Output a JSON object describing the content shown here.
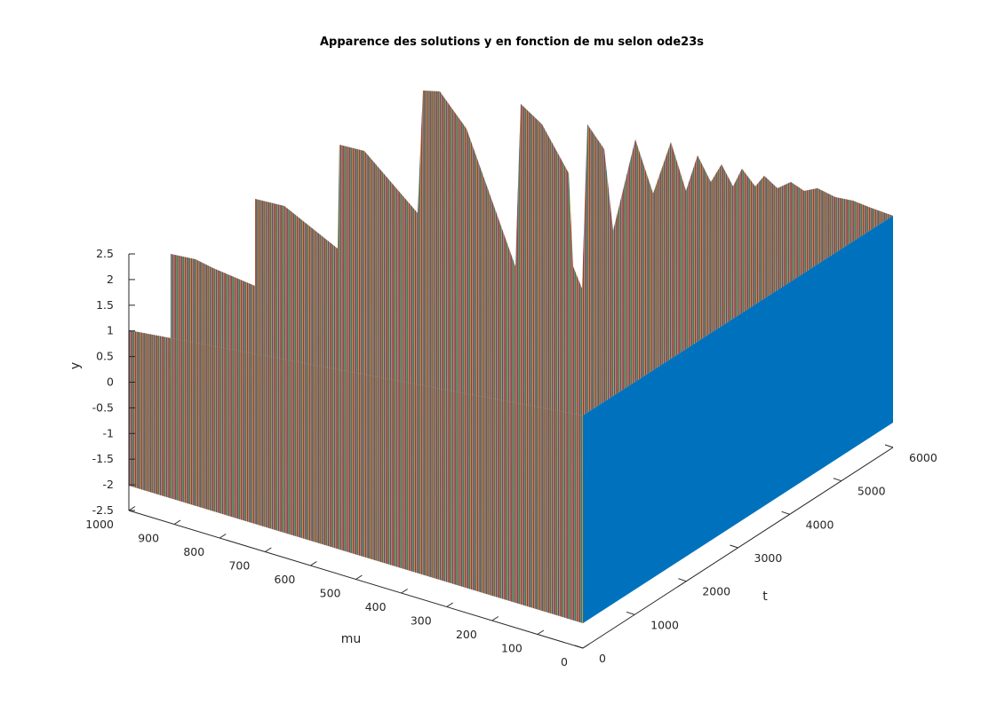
{
  "chart_data": {
    "type": "line",
    "title": "Apparence des solutions y en fonction de mu selon ode23s",
    "xlabel": "t",
    "ylabel": "mu",
    "zlabel": "y",
    "xlim": [
      0,
      6000
    ],
    "ylim": [
      0,
      1000
    ],
    "zlim": [
      -2.5,
      2.5
    ],
    "x_ticks": [
      "0",
      "1000",
      "2000",
      "3000",
      "4000",
      "5000",
      "6000"
    ],
    "y_ticks": [
      "0",
      "100",
      "200",
      "300",
      "400",
      "500",
      "600",
      "700",
      "800",
      "900",
      "1000"
    ],
    "z_ticks": [
      "-2.5",
      "-2",
      "-1.5",
      "-1",
      "-0.5",
      "0",
      "0.5",
      "1",
      "1.5",
      "2",
      "2.5"
    ],
    "grid": false,
    "series_description": "Van der Pol solutions y(t) for mu from 0 to 1000 plotted as a 3D waterfall; one line per mu value",
    "mu_range": [
      0,
      1000
    ],
    "t_range": [
      0,
      6000
    ],
    "y_amplitude": 2.0
  },
  "colors": {
    "palette": [
      "#0072bd",
      "#d95319",
      "#edb120",
      "#7e2f8e",
      "#77ac30",
      "#4dbeee",
      "#a2142f"
    ],
    "front_face": "#0072bd",
    "axis": "#262626"
  }
}
